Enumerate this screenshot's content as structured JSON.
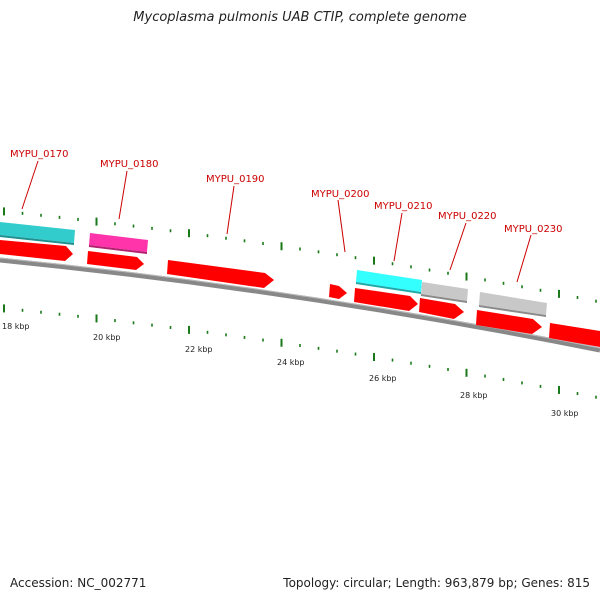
{
  "title": "Mycoplasma pulmonis UAB CTIP, complete genome",
  "footer": {
    "accession": "Accession: NC_002771",
    "summary": "Topology: circular; Length: 963,879 bp; Genes: 815"
  },
  "colors": {
    "backbone": "#888888",
    "cds": "#ff0000",
    "gene_label": "#cc0000",
    "tick": "#1a7a1a",
    "teal_feature": "#33cccc",
    "cyan_feature": "#33ffff",
    "magenta_feature": "#ff33aa",
    "gray_feature": "#c8c8c8"
  },
  "scale_labels": [
    "18 kbp",
    "20 kbp",
    "22 kbp",
    "24 kbp",
    "26 kbp",
    "28 kbp",
    "30 kbp"
  ],
  "gene_labels": [
    "MYPU_0170",
    "MYPU_0180",
    "MYPU_0190",
    "MYPU_0200",
    "MYPU_0210",
    "MYPU_0220",
    "MYPU_0230"
  ]
}
